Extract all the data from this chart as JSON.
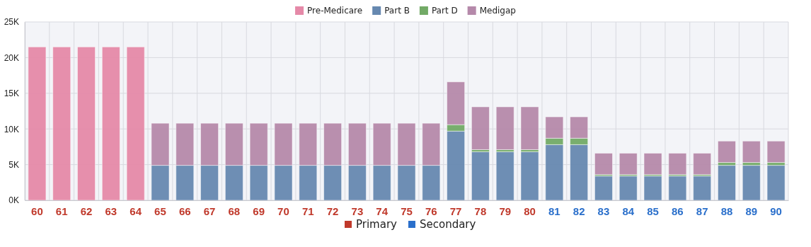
{
  "chart_data": {
    "type": "bar",
    "stacked": true,
    "grid": true,
    "legend": "top",
    "categories": [
      "60",
      "61",
      "62",
      "63",
      "64",
      "65",
      "66",
      "67",
      "68",
      "69",
      "70",
      "71",
      "72",
      "73",
      "74",
      "75",
      "76",
      "77",
      "78",
      "79",
      "80",
      "81",
      "82",
      "83",
      "84",
      "85",
      "86",
      "87",
      "88",
      "89",
      "90"
    ],
    "series": [
      {
        "name": "Pre-Medicare",
        "color": "#e589a8",
        "values": [
          21500,
          21500,
          21500,
          21500,
          21500,
          null,
          null,
          null,
          null,
          null,
          null,
          null,
          null,
          null,
          null,
          null,
          null,
          null,
          null,
          null,
          null,
          null,
          null,
          null,
          null,
          null,
          null,
          null,
          null,
          null,
          null
        ]
      },
      {
        "name": "Part B",
        "color": "#6688b0",
        "values": [
          null,
          null,
          null,
          null,
          null,
          4900,
          4900,
          4900,
          4900,
          4900,
          4900,
          4900,
          4900,
          4900,
          4900,
          4900,
          4900,
          9700,
          6800,
          6800,
          6800,
          7800,
          7800,
          3400,
          3400,
          3400,
          3400,
          3400,
          4900,
          4900,
          4900
        ]
      },
      {
        "name": "Part D",
        "color": "#72aa66",
        "values": [
          null,
          null,
          null,
          null,
          null,
          0,
          0,
          0,
          0,
          0,
          0,
          0,
          0,
          0,
          0,
          0,
          0,
          900,
          300,
          300,
          300,
          900,
          900,
          200,
          200,
          200,
          200,
          200,
          400,
          400,
          400
        ]
      },
      {
        "name": "Medigap",
        "color": "#b589aa",
        "values": [
          null,
          null,
          null,
          null,
          null,
          5900,
          5900,
          5900,
          5900,
          5900,
          5900,
          5900,
          5900,
          5900,
          5900,
          5900,
          5900,
          6000,
          6000,
          6000,
          6000,
          3000,
          3000,
          3000,
          3000,
          3000,
          3000,
          3000,
          3000,
          3000,
          3000
        ]
      }
    ],
    "ylim": [
      0,
      25000
    ],
    "yticks": [
      {
        "value": 0,
        "label": "0K"
      },
      {
        "value": 5000,
        "label": "5K"
      },
      {
        "value": 10000,
        "label": "10K"
      },
      {
        "value": 15000,
        "label": "15K"
      },
      {
        "value": 20000,
        "label": "20K"
      },
      {
        "value": 25000,
        "label": "25K"
      }
    ],
    "annotations": [
      "Primary",
      "Secondary"
    ]
  }
}
